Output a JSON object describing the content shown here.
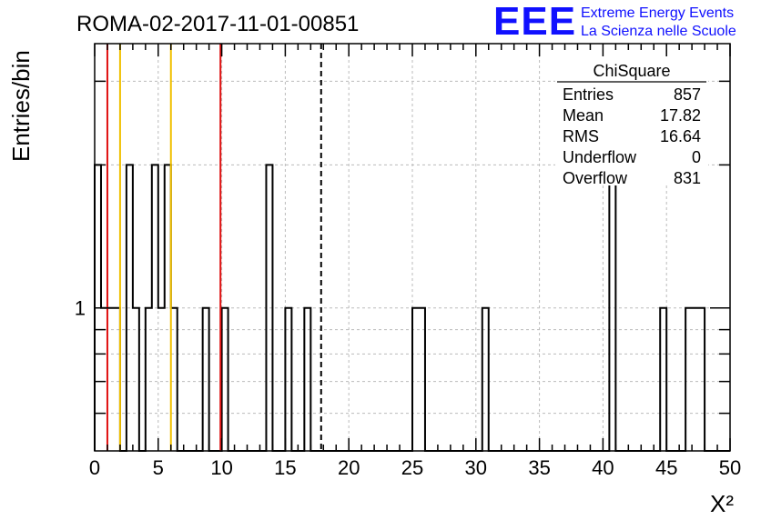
{
  "chart_data": {
    "type": "histogram",
    "title": "ROMA-02-2017-11-01-00851",
    "xlabel": "X²",
    "ylabel": "Entries/bin",
    "xlim": [
      0,
      50
    ],
    "ylim": [
      0.5,
      3.6
    ],
    "log_y": true,
    "grid": true,
    "bin_width": 0.5,
    "x_ticks": [
      0,
      5,
      10,
      15,
      20,
      25,
      30,
      35,
      40,
      45,
      50
    ],
    "y_ticks": [
      1
    ],
    "bins": [
      {
        "x": 0.0,
        "y": 2
      },
      {
        "x": 0.5,
        "y": 1
      },
      {
        "x": 1.0,
        "y": 1
      },
      {
        "x": 1.5,
        "y": 1
      },
      {
        "x": 2.5,
        "y": 2
      },
      {
        "x": 3.0,
        "y": 1
      },
      {
        "x": 4.0,
        "y": 1
      },
      {
        "x": 4.5,
        "y": 2
      },
      {
        "x": 5.0,
        "y": 1
      },
      {
        "x": 5.5,
        "y": 2
      },
      {
        "x": 6.0,
        "y": 1
      },
      {
        "x": 8.5,
        "y": 1
      },
      {
        "x": 10.0,
        "y": 1
      },
      {
        "x": 13.5,
        "y": 2
      },
      {
        "x": 15.0,
        "y": 1
      },
      {
        "x": 16.5,
        "y": 1
      },
      {
        "x": 25.0,
        "y": 1
      },
      {
        "x": 25.5,
        "y": 1
      },
      {
        "x": 30.5,
        "y": 1
      },
      {
        "x": 40.5,
        "y": 2
      },
      {
        "x": 44.5,
        "y": 1
      },
      {
        "x": 46.5,
        "y": 1
      },
      {
        "x": 47.0,
        "y": 1
      },
      {
        "x": 47.5,
        "y": 1
      }
    ],
    "vertical_lines": [
      {
        "x": 1.0,
        "color": "#e01010",
        "style": "solid"
      },
      {
        "x": 9.9,
        "color": "#e01010",
        "style": "solid"
      },
      {
        "x": 2.0,
        "color": "#f0c000",
        "style": "solid"
      },
      {
        "x": 6.0,
        "color": "#f0c000",
        "style": "solid"
      },
      {
        "x": 17.82,
        "color": "#000000",
        "style": "dashed"
      }
    ],
    "stats_box": {
      "title": "ChiSquare",
      "rows": [
        {
          "label": "Entries",
          "value": "857"
        },
        {
          "label": "Mean",
          "value": "17.82"
        },
        {
          "label": "RMS",
          "value": "16.64"
        },
        {
          "label": "Underflow",
          "value": "0"
        },
        {
          "label": "Overflow",
          "value": "831"
        }
      ]
    }
  },
  "logo": {
    "mark": "EEE",
    "line1": "Extreme Energy Events",
    "line2": "La Scienza nelle Scuole",
    "color": "#1010ff"
  }
}
